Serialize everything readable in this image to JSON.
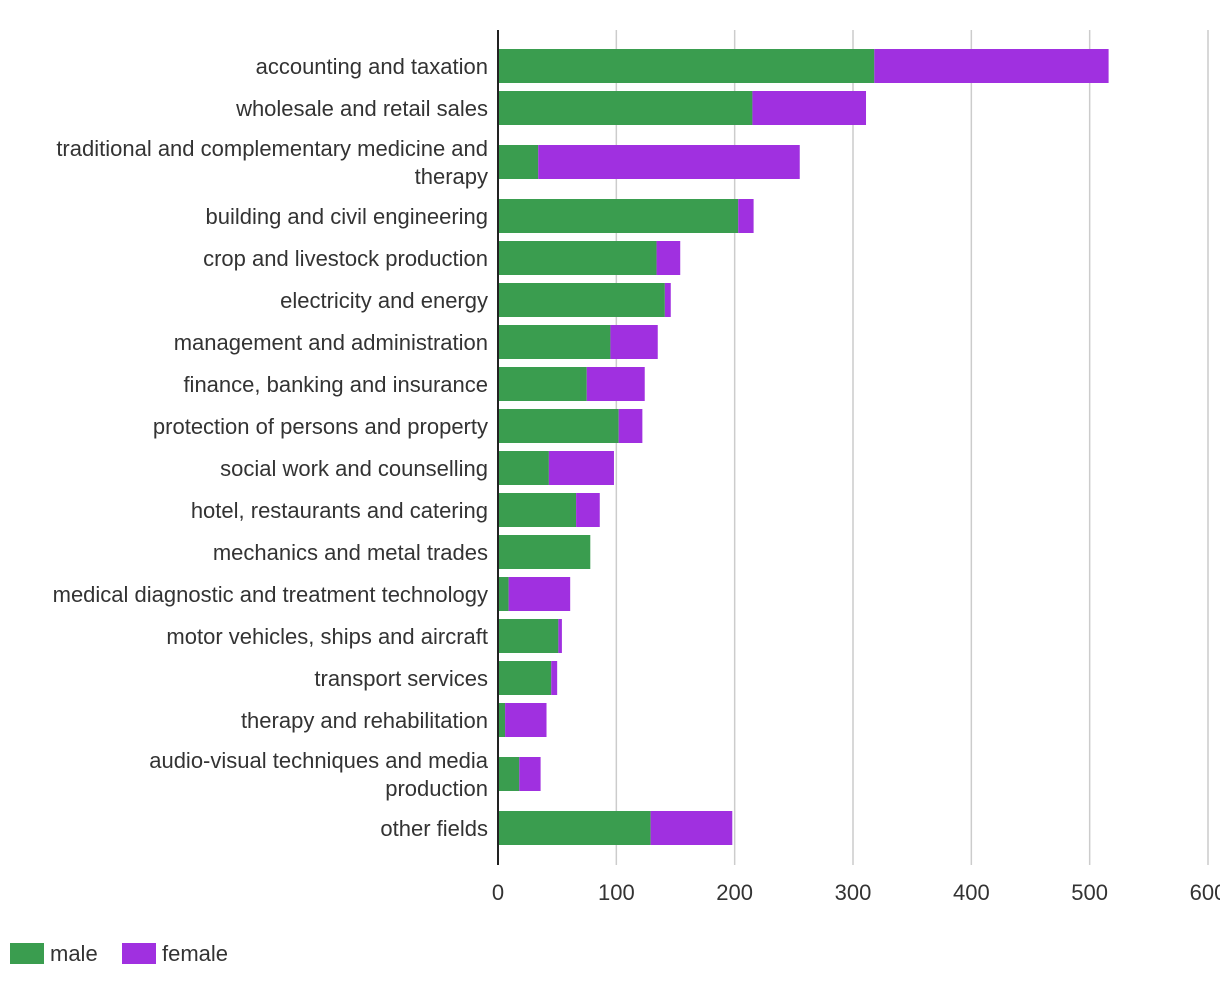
{
  "chart_data": {
    "type": "bar",
    "orientation": "horizontal",
    "stacked": true,
    "title": "",
    "xlabel": "",
    "ylabel": "",
    "xlim": [
      0,
      600
    ],
    "xticks": [
      0,
      100,
      200,
      300,
      400,
      500,
      600
    ],
    "grid": true,
    "legend_position": "bottom-left",
    "categories": [
      [
        "accounting and taxation"
      ],
      [
        "wholesale and retail sales"
      ],
      [
        "traditional and complementary medicine and",
        "therapy"
      ],
      [
        "building and civil engineering"
      ],
      [
        "crop and livestock production"
      ],
      [
        "electricity and energy"
      ],
      [
        "management and administration"
      ],
      [
        "finance, banking and insurance"
      ],
      [
        "protection of persons and property"
      ],
      [
        "social work and counselling"
      ],
      [
        "hotel, restaurants and catering"
      ],
      [
        "mechanics and metal trades"
      ],
      [
        "medical diagnostic and treatment technology"
      ],
      [
        "motor vehicles, ships and aircraft"
      ],
      [
        "transport services"
      ],
      [
        "therapy and rehabilitation"
      ],
      [
        "audio-visual techniques and media",
        "production"
      ],
      [
        "other fields"
      ]
    ],
    "series": [
      {
        "name": "male",
        "color": "#3a9d4f",
        "values": [
          318,
          215,
          34,
          203,
          134,
          141,
          95,
          75,
          102,
          43,
          66,
          78,
          9,
          51,
          45,
          6,
          18,
          129
        ]
      },
      {
        "name": "female",
        "color": "#a030e0",
        "values": [
          198,
          96,
          221,
          13,
          20,
          5,
          40,
          49,
          20,
          55,
          20,
          0,
          52,
          3,
          5,
          35,
          18,
          69
        ]
      }
    ]
  },
  "colors": {
    "axis": "#222222",
    "grid": "#cccccc",
    "text": "#333333"
  }
}
